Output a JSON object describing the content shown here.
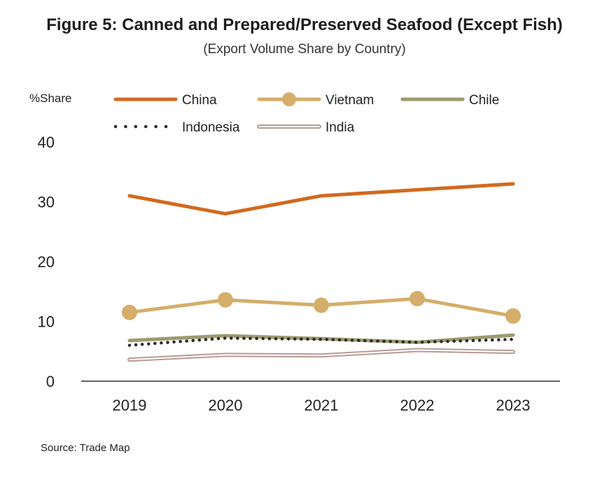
{
  "chart_data": {
    "type": "line",
    "title": "Figure 5: Canned and Prepared/Preserved Seafood (Except Fish)",
    "subtitle": "(Export Volume Share by Country)",
    "ylabel": "%Share",
    "xlabel": "",
    "categories": [
      "2019",
      "2020",
      "2021",
      "2022",
      "2023"
    ],
    "ylim": [
      0,
      40
    ],
    "yticks": [
      0,
      10,
      20,
      30,
      40
    ],
    "grid": false,
    "legend_position": "top",
    "series": [
      {
        "name": "China",
        "values": [
          31,
          28,
          31,
          32,
          33
        ],
        "color": "#D2691E",
        "style": "solid"
      },
      {
        "name": "Vietnam",
        "values": [
          11.5,
          13.6,
          12.7,
          13.8,
          10.9
        ],
        "color": "#D4AE6A",
        "style": "marker"
      },
      {
        "name": "Chile",
        "values": [
          6.8,
          7.6,
          7.1,
          6.5,
          7.7
        ],
        "color": "#9C9A6E",
        "style": "solid"
      },
      {
        "name": "Indonesia",
        "values": [
          6.0,
          7.2,
          7.0,
          6.5,
          7.0
        ],
        "color": "#2B2B2B",
        "style": "dotted"
      },
      {
        "name": "India",
        "values": [
          3.6,
          4.4,
          4.3,
          5.2,
          4.9
        ],
        "color": "#B79B96",
        "style": "double"
      }
    ]
  },
  "source": "Source: Trade Map"
}
